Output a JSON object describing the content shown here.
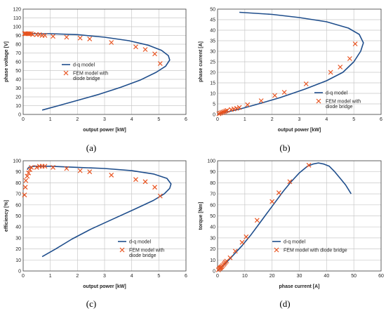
{
  "colors": {
    "model_line": "#1f4e8c",
    "fem_marker": "#e8521e",
    "grid": "#c8c8c8",
    "axis": "#444444"
  },
  "chart_data": [
    {
      "type": "line",
      "caption": "(a)",
      "xlabel": "output power [kW]",
      "ylabel": "phase voltage [V]",
      "xlim": [
        0,
        6
      ],
      "ylim": [
        0,
        120
      ],
      "xticks": [
        0,
        1,
        2,
        3,
        4,
        5,
        6
      ],
      "yticks": [
        0,
        10,
        20,
        30,
        40,
        50,
        60,
        70,
        80,
        90,
        100,
        110,
        120
      ],
      "grid": true,
      "legend_position": "center-left",
      "series": [
        {
          "name": "d-q model",
          "kind": "line",
          "x": [
            0.7,
            1.3,
            2.0,
            2.8,
            3.6,
            4.3,
            4.9,
            5.25,
            5.4,
            5.35,
            5.1,
            4.6,
            3.9,
            3.0,
            2.0,
            1.0,
            0.35,
            0.1,
            0.05
          ],
          "y": [
            5,
            10,
            16,
            23,
            31,
            39,
            48,
            55,
            62,
            67,
            73,
            79,
            84,
            88,
            91,
            92,
            92,
            92,
            92
          ]
        },
        {
          "name": "FEM model with diode bridge",
          "kind": "scatter",
          "x": [
            0.05,
            0.08,
            0.1,
            0.15,
            0.2,
            0.25,
            0.3,
            0.35,
            0.5,
            0.6,
            0.7,
            0.8,
            1.1,
            1.6,
            2.1,
            2.45,
            3.25,
            4.15,
            4.5,
            4.85,
            5.05
          ],
          "y": [
            92,
            92,
            92,
            92,
            92,
            92,
            92,
            91,
            91,
            91,
            90,
            90,
            89,
            88,
            87,
            86,
            82,
            77,
            74,
            69,
            58
          ]
        }
      ]
    },
    {
      "type": "line",
      "caption": "(b)",
      "xlabel": "output power [kW]",
      "ylabel": "phase current [A]",
      "xlim": [
        0,
        6
      ],
      "ylim": [
        0,
        50
      ],
      "xticks": [
        0,
        1,
        2,
        3,
        4,
        5,
        6
      ],
      "yticks": [
        0,
        5,
        10,
        15,
        20,
        25,
        30,
        35,
        40,
        45,
        50
      ],
      "grid": true,
      "legend_position": "bottom-right",
      "series": [
        {
          "name": "d-q model",
          "kind": "line",
          "x": [
            0,
            0.3,
            0.8,
            1.5,
            2.3,
            3.2,
            4.0,
            4.6,
            5.0,
            5.25,
            5.35,
            5.2,
            4.8,
            4.0,
            3.0,
            2.0,
            0.8
          ],
          "y": [
            0,
            1,
            2.5,
            5,
            8,
            12,
            16,
            20,
            25,
            30,
            34,
            38,
            41,
            44,
            46,
            47.5,
            48.5
          ]
        },
        {
          "name": "FEM model with diode bridge",
          "kind": "scatter",
          "x": [
            0.05,
            0.1,
            0.15,
            0.2,
            0.25,
            0.3,
            0.35,
            0.5,
            0.6,
            0.7,
            0.8,
            1.1,
            1.6,
            2.1,
            2.45,
            3.25,
            4.15,
            4.5,
            4.85,
            5.05
          ],
          "y": [
            0.3,
            0.6,
            0.9,
            1.1,
            1.3,
            1.6,
            1.9,
            2.3,
            2.6,
            2.9,
            3.3,
            4.6,
            6.5,
            9.0,
            10.5,
            14.5,
            20,
            22.5,
            26.5,
            33.5
          ]
        }
      ]
    },
    {
      "type": "line",
      "caption": "(c)",
      "xlabel": "output power [kW]",
      "ylabel": "efficiency [%]",
      "xlim": [
        0,
        6
      ],
      "ylim": [
        0,
        100
      ],
      "xticks": [
        0,
        1,
        2,
        3,
        4,
        5,
        6
      ],
      "yticks": [
        0,
        10,
        20,
        30,
        40,
        50,
        60,
        70,
        80,
        90,
        100
      ],
      "grid": true,
      "legend_position": "bottom-right",
      "series": [
        {
          "name": "d-q model",
          "kind": "line",
          "x": [
            0.7,
            1.2,
            1.8,
            2.5,
            3.3,
            4.1,
            4.8,
            5.2,
            5.4,
            5.45,
            5.3,
            4.8,
            4.0,
            3.0,
            2.0,
            1.0,
            0.4,
            0.2,
            0.15
          ],
          "y": [
            13,
            20,
            29,
            38,
            47,
            56,
            64,
            70,
            75,
            79,
            84,
            88,
            91,
            93,
            94,
            95,
            95,
            94,
            92
          ]
        },
        {
          "name": "FEM model with diode bridge",
          "kind": "scatter",
          "x": [
            0.05,
            0.08,
            0.1,
            0.15,
            0.2,
            0.25,
            0.3,
            0.5,
            0.6,
            0.7,
            0.8,
            1.1,
            1.6,
            2.1,
            2.45,
            3.25,
            4.15,
            4.5,
            4.85,
            5.05
          ],
          "y": [
            69,
            76,
            82,
            86,
            89,
            92,
            94,
            94,
            95,
            95,
            95,
            94,
            93,
            91,
            90,
            87,
            83,
            81,
            76,
            68
          ]
        }
      ]
    },
    {
      "type": "line",
      "caption": "(d)",
      "xlabel": "phase current [A]",
      "ylabel": "torque [Nm]",
      "xlim": [
        0,
        60
      ],
      "ylim": [
        0,
        100
      ],
      "xticks": [
        0,
        10,
        20,
        30,
        40,
        50,
        60
      ],
      "yticks": [
        0,
        10,
        20,
        30,
        40,
        50,
        60,
        70,
        80,
        90,
        100
      ],
      "grid": true,
      "legend_position": "bottom-center",
      "series": [
        {
          "name": "d-q model",
          "kind": "line",
          "x": [
            0,
            3,
            6,
            9,
            12,
            15,
            18,
            21,
            24,
            27,
            30,
            33,
            35,
            37,
            39,
            41,
            43,
            45,
            47,
            49
          ],
          "y": [
            0,
            7,
            15,
            23,
            32,
            42,
            52,
            62,
            72,
            81,
            89,
            95,
            97,
            98,
            97,
            95,
            90,
            84,
            78,
            70
          ]
        },
        {
          "name": "FEM model with diode bridge",
          "kind": "scatter",
          "x": [
            0.3,
            0.6,
            0.9,
            1.1,
            1.3,
            1.6,
            1.9,
            2.3,
            2.6,
            2.9,
            3.3,
            4.6,
            6.5,
            9.0,
            10.5,
            14.5,
            20,
            22.5,
            26.5,
            33.5
          ],
          "y": [
            1,
            2,
            2.5,
            3,
            3.5,
            4,
            5,
            6,
            7,
            8,
            9,
            12,
            18,
            26,
            31,
            46,
            63,
            71,
            81,
            96
          ]
        }
      ]
    }
  ]
}
